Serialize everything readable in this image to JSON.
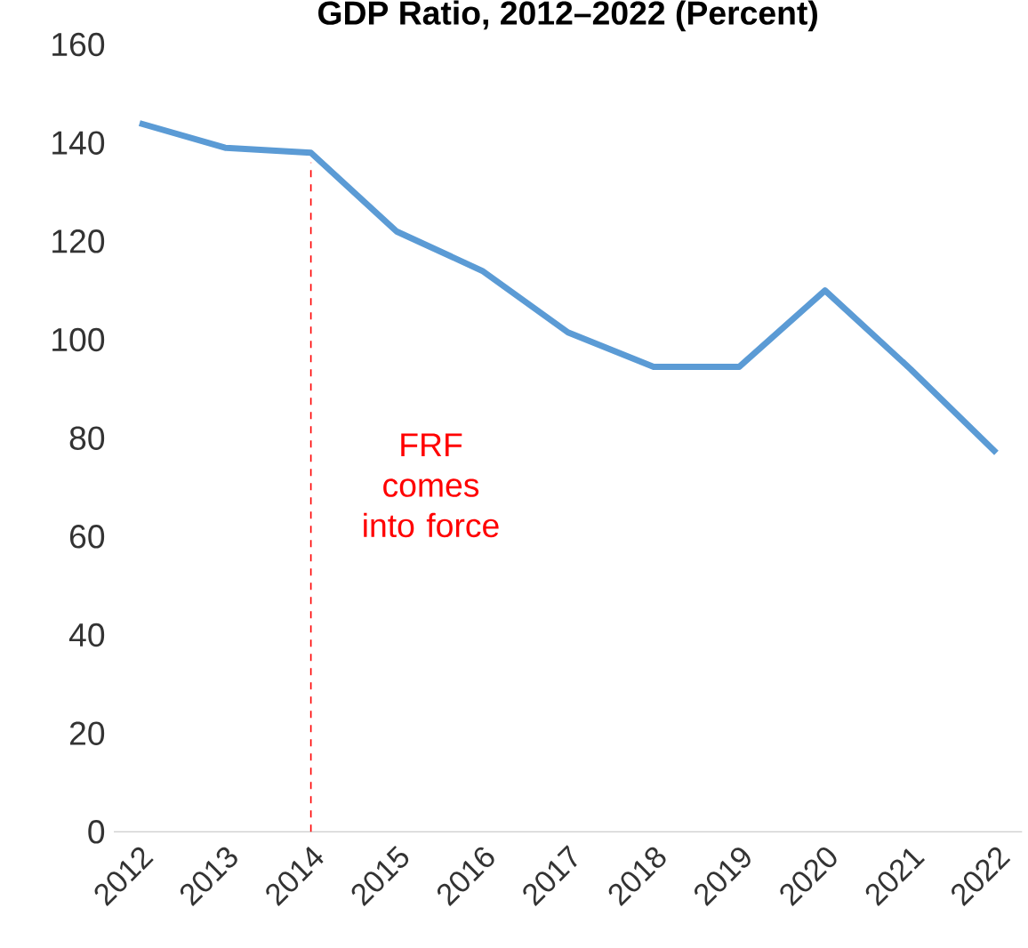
{
  "chart_data": {
    "type": "line",
    "title": "GDP Ratio, 2012–2022 (Percent)",
    "categories": [
      "2012",
      "2013",
      "2014",
      "2015",
      "2016",
      "2017",
      "2018",
      "2019",
      "2020",
      "2021",
      "2022"
    ],
    "values": [
      144,
      139,
      138,
      122,
      114,
      101.5,
      94.5,
      94.5,
      110,
      94,
      77
    ],
    "color": "#5b9bd5",
    "ylim": [
      0,
      160
    ],
    "yticks": [
      0,
      20,
      40,
      60,
      80,
      100,
      120,
      140,
      160
    ],
    "marker": "none",
    "line_style": "solid",
    "ref_lines": [
      {
        "axis": "x",
        "value": "2014",
        "label": "FRF comes into force",
        "color": "#ff0000",
        "line_style": "dashed"
      }
    ]
  }
}
